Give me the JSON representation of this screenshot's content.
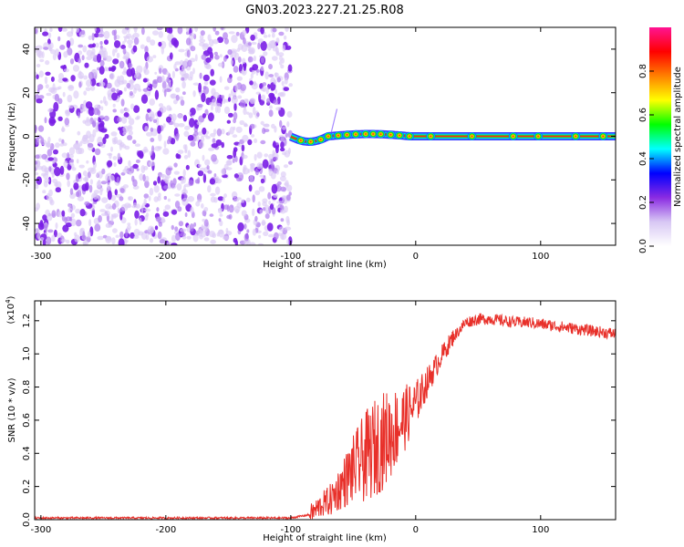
{
  "title": "GN03.2023.227.21.25.R08",
  "chart_data": [
    {
      "type": "heatmap",
      "xlabel": "Height of straight line (km)",
      "ylabel": "Frequency (Hz)",
      "xlim": [
        -305,
        160
      ],
      "ylim": [
        -50,
        50
      ],
      "xticks": [
        -300,
        -200,
        -100,
        0,
        100
      ],
      "yticks": [
        -40,
        -20,
        0,
        20,
        40
      ],
      "noise_region_x": [
        -305,
        -100
      ],
      "signal_line_frequency": 0,
      "signal_line_x": [
        -100,
        160
      ],
      "colorbar": {
        "label": "Normalized spectral amplitude",
        "range": [
          0.0,
          1.0
        ],
        "ticks": [
          "0.0",
          "0.2",
          "0.4",
          "0.6",
          "0.8"
        ],
        "colors": [
          "#ffffff",
          "#d8c8f4",
          "#8a2be2",
          "#0000ff",
          "#00ffff",
          "#00ff00",
          "#ffff00",
          "#ff8000",
          "#ff0000",
          "#ff1493"
        ]
      }
    },
    {
      "type": "line",
      "xlabel": "Height of straight line (km)",
      "ylabel": "SNR (10 * v/v)",
      "yscale_label": "(x10",
      "yscale_exp": "4",
      "yscale_close": ")",
      "xlim": [
        -305,
        160
      ],
      "ylim": [
        0,
        1.32
      ],
      "xticks": [
        -300,
        -200,
        -100,
        0,
        100
      ],
      "yticks": [
        "0.0",
        "0.2",
        "0.4",
        "0.6",
        "0.8",
        "1.0",
        "1.2"
      ],
      "color": "#e8302a",
      "x": [
        -305,
        -100,
        -85,
        -75,
        -68,
        -60,
        -50,
        -40,
        -30,
        -20,
        -10,
        0,
        10,
        20,
        30,
        40,
        50,
        60,
        70,
        80,
        90,
        100,
        110,
        120,
        130,
        140,
        150,
        160
      ],
      "y": [
        0.01,
        0.01,
        0.03,
        0.09,
        0.12,
        0.2,
        0.3,
        0.38,
        0.45,
        0.52,
        0.6,
        0.7,
        0.84,
        0.98,
        1.1,
        1.19,
        1.21,
        1.21,
        1.2,
        1.19,
        1.19,
        1.18,
        1.17,
        1.16,
        1.15,
        1.14,
        1.13,
        1.12
      ]
    }
  ]
}
